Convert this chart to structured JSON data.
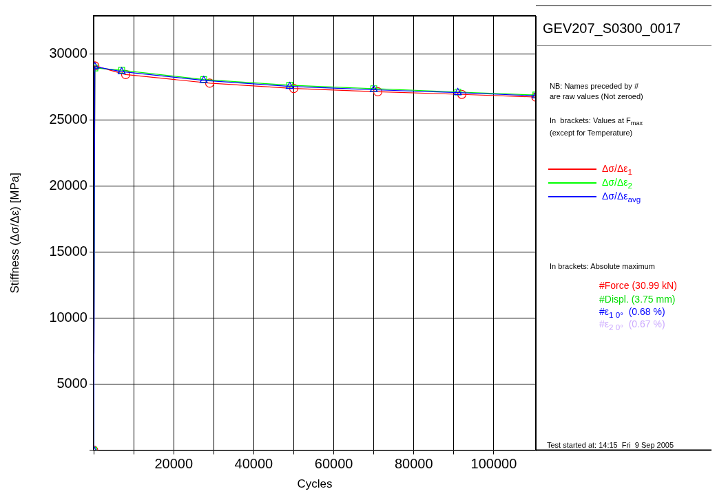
{
  "chart_data": {
    "type": "line",
    "title": "GEV207_S0300_0017",
    "xlabel": "Cycles",
    "ylabel": "Stiffness (Δσ/Δε) [MPa]",
    "xlim": [
      0,
      110500
    ],
    "ylim": [
      0,
      32900
    ],
    "xticks": [
      {
        "value": 0,
        "label": null
      },
      {
        "value": 10000,
        "label": null
      },
      20000,
      {
        "value": 30000,
        "label": null
      },
      40000,
      {
        "value": 50000,
        "label": null
      },
      60000,
      {
        "value": 70000,
        "label": null
      },
      80000,
      {
        "value": 90000,
        "label": null
      },
      100000
    ],
    "yticks": [
      {
        "value": 0,
        "label": null
      },
      5000,
      10000,
      15000,
      20000,
      25000,
      30000
    ],
    "grid": true,
    "legend": "right",
    "line_style": "solid",
    "series": [
      {
        "name": "Δσ/Δε$_{1}$",
        "color": "#ff0000",
        "marker": "circle",
        "x": [
          0,
          300,
          8000,
          29000,
          50000,
          71000,
          92000,
          110500
        ],
        "values": [
          0,
          29100,
          28450,
          27800,
          27400,
          27150,
          26950,
          26750
        ]
      },
      {
        "name": "Δσ/Δε$_{2}$",
        "color": "#00ff00",
        "marker": "square",
        "x": [
          0,
          300,
          7000,
          27500,
          49000,
          70000,
          91000,
          110500
        ],
        "values": [
          0,
          28950,
          28780,
          28080,
          27650,
          27380,
          27130,
          26900
        ]
      },
      {
        "name": "Δσ/Δε$_{avg}$",
        "color": "#0000ff",
        "marker": "triangle",
        "x": [
          0,
          300,
          7000,
          27500,
          49000,
          70000,
          91000,
          110500
        ],
        "values": [
          0,
          29050,
          28670,
          28010,
          27550,
          27300,
          27090,
          26840
        ]
      }
    ],
    "annotations": [
      "NB: Names preceded by #\nare raw values (Not zeroed)",
      "In  brackets: Values at F$_{max}$\n(except for Temperature)",
      "In brackets: Absolute maximum",
      "#Force (30.99 kN)",
      "#Displ. (3.75 mm)",
      "#ε$_{1 0°}$  (0.68 %)",
      "#ε$_{2 0°}$  (0.67 %)",
      "Test started at: 14:15  Fri  9 Sep 2005"
    ]
  }
}
